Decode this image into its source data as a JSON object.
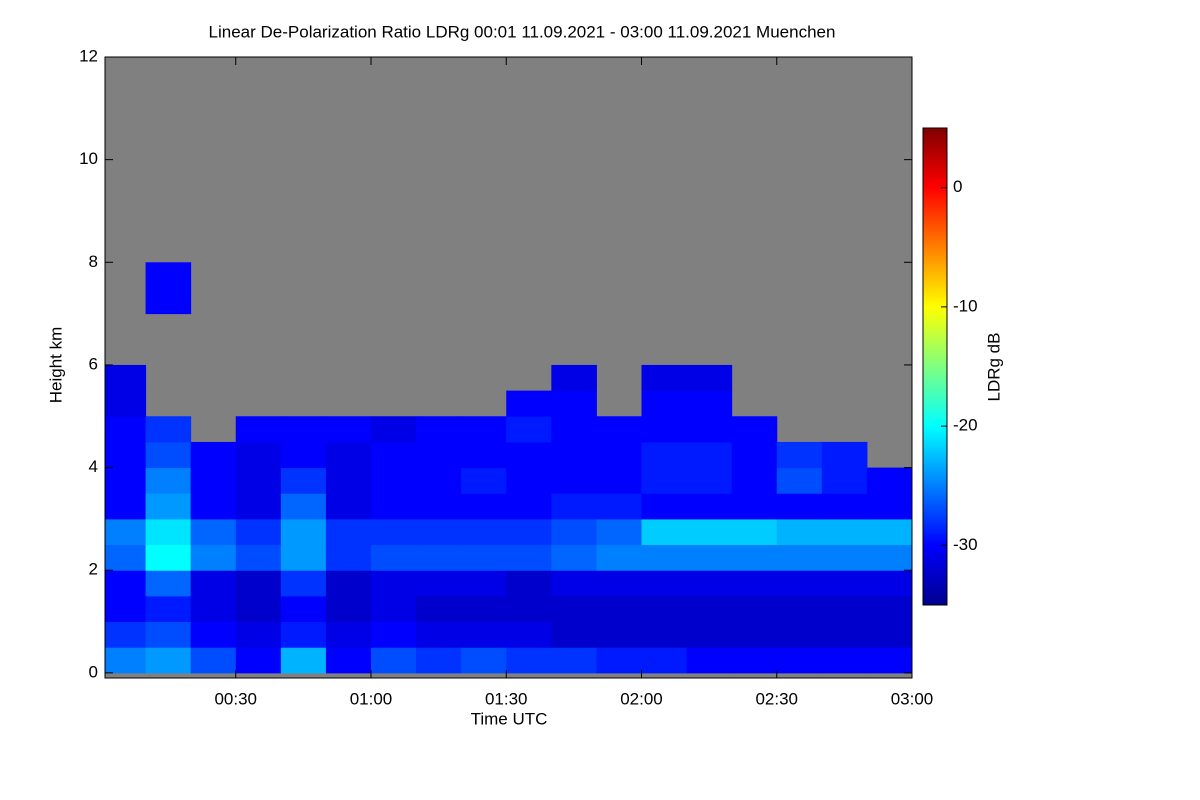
{
  "chart_data": {
    "type": "heatmap",
    "title": "Linear De-Polarization Ratio LDRg   00:01 11.09.2021 - 03:00 11.09.2021 Muenchen",
    "xlabel": "Time UTC",
    "ylabel": "Height km",
    "colorbar_label": "LDRg dB",
    "xlim": [
      1,
      180
    ],
    "xticks": [
      {
        "value": 30,
        "label": "00:30"
      },
      {
        "value": 60,
        "label": "01:00"
      },
      {
        "value": 90,
        "label": "01:30"
      },
      {
        "value": 120,
        "label": "02:00"
      },
      {
        "value": 150,
        "label": "02:30"
      },
      {
        "value": 180,
        "label": "03:00"
      }
    ],
    "ylim": [
      -0.1,
      12
    ],
    "yticks": [
      0,
      2,
      4,
      6,
      8,
      10,
      12
    ],
    "zlim": [
      -35,
      5
    ],
    "zticks": [
      0,
      -10,
      -20,
      -30
    ],
    "missing_color": "#808080",
    "xbins": [
      0,
      10,
      20,
      30,
      40,
      50,
      60,
      70,
      80,
      90,
      100,
      110,
      120,
      130,
      140,
      150,
      160,
      170,
      180
    ],
    "ybins": [
      0,
      0.5,
      1,
      1.5,
      2,
      2.5,
      3,
      3.5,
      4,
      4.5,
      5,
      5.5,
      6,
      6.5,
      7,
      7.5,
      8,
      8.5,
      9,
      9.5,
      10,
      10.5,
      11,
      11.5,
      12
    ],
    "z": [
      [
        -25,
        -24,
        -27,
        -30,
        -23,
        -30,
        -27,
        -28,
        -27,
        -28,
        -28,
        -29,
        -29,
        -30,
        -30,
        -30,
        -30,
        -30
      ],
      [
        -28,
        -27,
        -30,
        -31,
        -29,
        -31,
        -30,
        -31,
        -31,
        -31,
        -32,
        -32,
        -32,
        -32,
        -32,
        -32,
        -32,
        -32
      ],
      [
        -30,
        -29,
        -31,
        -32,
        -30,
        -32,
        -31,
        -32,
        -32,
        -32,
        -32,
        -32,
        -32,
        -32,
        -32,
        -32,
        -32,
        -32
      ],
      [
        -30,
        -26,
        -31,
        -32,
        -28,
        -32,
        -31,
        -31,
        -31,
        -32,
        -31,
        -31,
        -31,
        -31,
        -31,
        -31,
        -31,
        -31
      ],
      [
        -26,
        -20,
        -25,
        -27,
        -24,
        -28,
        -27,
        -27,
        -27,
        -27,
        -26,
        -25,
        -25,
        -25,
        -25,
        -25,
        -25,
        -25
      ],
      [
        -25,
        -21,
        -26,
        -28,
        -24,
        -28,
        -28,
        -28,
        -28,
        -28,
        -27,
        -26,
        -22,
        -22,
        -22,
        -23,
        -23,
        -23
      ],
      [
        -30,
        -24,
        -30,
        -31,
        -26,
        -31,
        -30,
        -30,
        -30,
        -30,
        -29,
        -29,
        -30,
        -30,
        -30,
        -30,
        -30,
        -30
      ],
      [
        -30,
        -25,
        -30,
        -31,
        -28,
        -31,
        -30,
        -30,
        -29,
        -30,
        -30,
        -30,
        -29,
        -29,
        -30,
        -27,
        -29,
        -30
      ],
      [
        -30,
        -27,
        -30,
        -31,
        -30,
        -31,
        -30,
        -30,
        -30,
        -30,
        -30,
        -30,
        -29,
        -29,
        -30,
        -28,
        -29,
        null
      ],
      [
        -30,
        -28,
        null,
        -30,
        -30,
        -30,
        -31,
        -30,
        -30,
        -29,
        -30,
        -30,
        -30,
        -30,
        -30,
        null,
        null,
        null
      ],
      [
        -31,
        null,
        null,
        null,
        null,
        null,
        null,
        null,
        null,
        -30,
        -30,
        null,
        -30,
        -30,
        null,
        null,
        null,
        null
      ],
      [
        -31,
        null,
        null,
        null,
        null,
        null,
        null,
        null,
        null,
        null,
        -31,
        null,
        -31,
        -31,
        null,
        null,
        null,
        null
      ],
      [
        null,
        null,
        null,
        null,
        null,
        null,
        null,
        null,
        null,
        null,
        null,
        null,
        null,
        null,
        null,
        null,
        null,
        null
      ],
      [
        null,
        null,
        null,
        null,
        null,
        null,
        null,
        null,
        null,
        null,
        null,
        null,
        null,
        null,
        null,
        null,
        null,
        null
      ],
      [
        null,
        -30,
        null,
        null,
        null,
        null,
        null,
        null,
        null,
        null,
        null,
        null,
        null,
        null,
        null,
        null,
        null,
        null
      ],
      [
        null,
        -30,
        null,
        null,
        null,
        null,
        null,
        null,
        null,
        null,
        null,
        null,
        null,
        null,
        null,
        null,
        null,
        null
      ],
      [
        null,
        null,
        null,
        null,
        null,
        null,
        null,
        null,
        null,
        null,
        null,
        null,
        null,
        null,
        null,
        null,
        null,
        null
      ],
      [
        null,
        null,
        null,
        null,
        null,
        null,
        null,
        null,
        null,
        null,
        null,
        null,
        null,
        null,
        null,
        null,
        null,
        null
      ],
      [
        null,
        null,
        null,
        null,
        null,
        null,
        null,
        null,
        null,
        null,
        null,
        null,
        null,
        null,
        null,
        null,
        null,
        null
      ],
      [
        null,
        null,
        null,
        null,
        null,
        null,
        null,
        null,
        null,
        null,
        null,
        null,
        null,
        null,
        null,
        null,
        null,
        null
      ],
      [
        null,
        null,
        null,
        null,
        null,
        null,
        null,
        null,
        null,
        null,
        null,
        null,
        null,
        null,
        null,
        null,
        null,
        null
      ],
      [
        null,
        null,
        null,
        null,
        null,
        null,
        null,
        null,
        null,
        null,
        null,
        null,
        null,
        null,
        null,
        null,
        null,
        null
      ],
      [
        null,
        null,
        null,
        null,
        null,
        null,
        null,
        null,
        null,
        null,
        null,
        null,
        null,
        null,
        null,
        null,
        null,
        null
      ],
      [
        null,
        null,
        null,
        null,
        null,
        null,
        null,
        null,
        null,
        null,
        null,
        null,
        null,
        null,
        null,
        null,
        null,
        null
      ]
    ]
  }
}
